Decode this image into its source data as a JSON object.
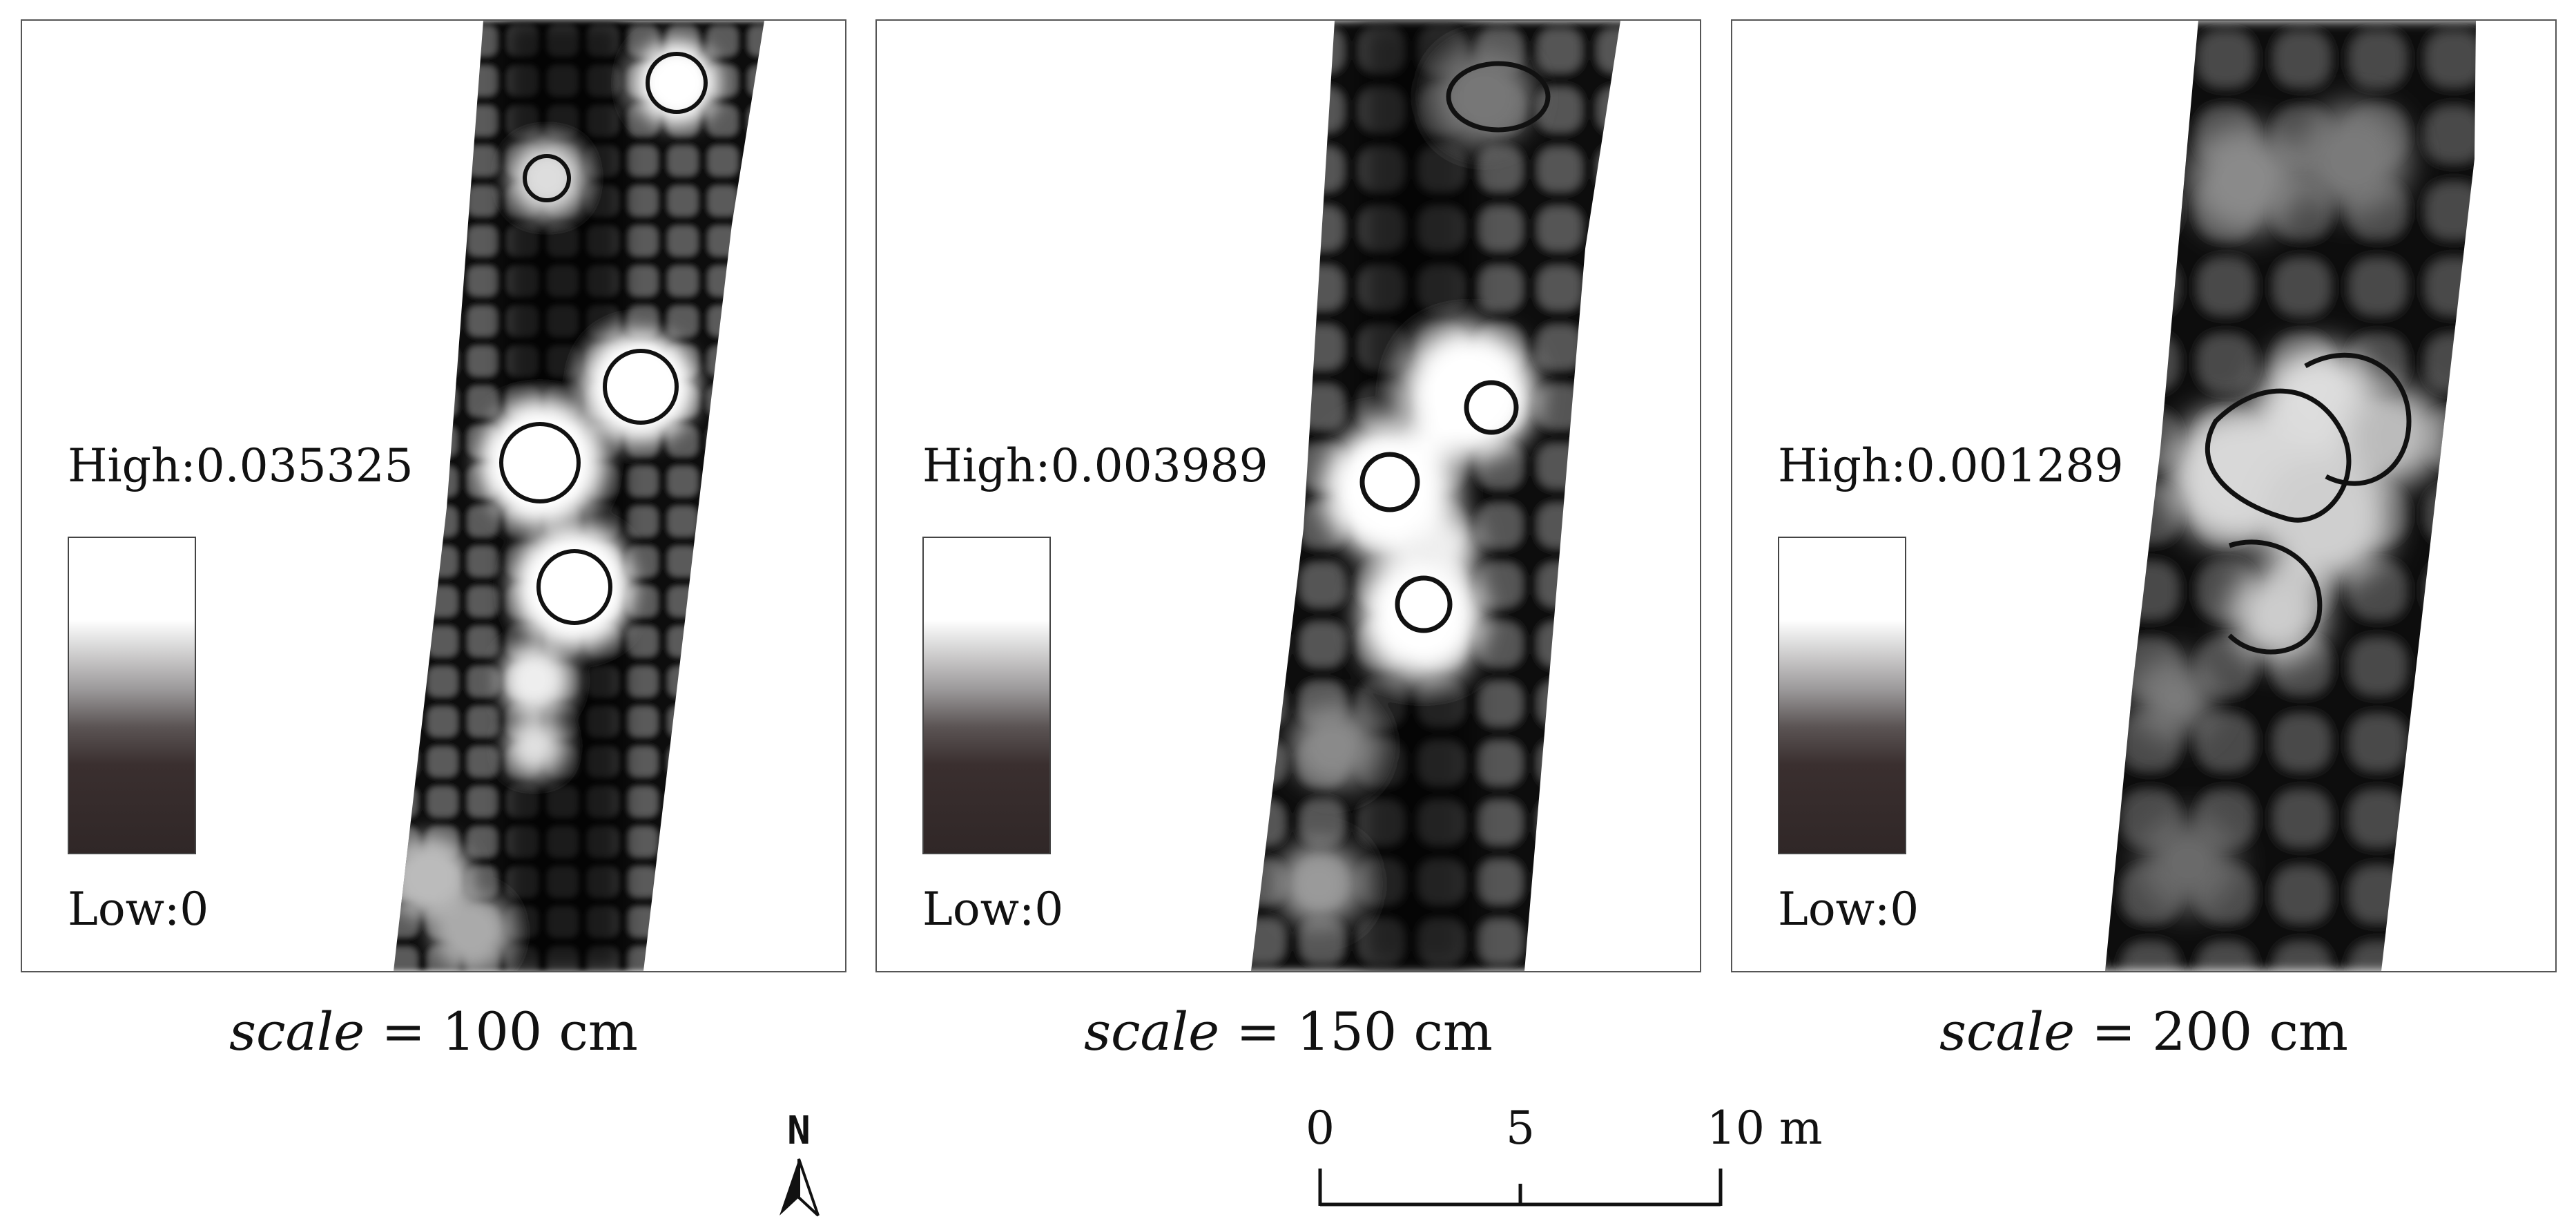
{
  "panels": [
    {
      "legend_high": "High:0.035325",
      "legend_low": "Low:0",
      "caption_var": "scale",
      "caption_value": " = 100 cm"
    },
    {
      "legend_high": "High:0.003989",
      "legend_low": "Low:0",
      "caption_var": "scale",
      "caption_value": " = 150 cm"
    },
    {
      "legend_high": "High:0.001289",
      "legend_low": "Low:0",
      "caption_var": "scale",
      "caption_value": " = 200 cm"
    }
  ],
  "north_arrow": {
    "label": "N"
  },
  "scale_bar": {
    "ticks": [
      "0",
      "5",
      "10 m"
    ]
  },
  "colors": {
    "high": "#ffffff",
    "low": "#302727",
    "strip_dark": "#080808",
    "border": "#555555"
  },
  "icons": {
    "north": "north-arrow-icon"
  }
}
